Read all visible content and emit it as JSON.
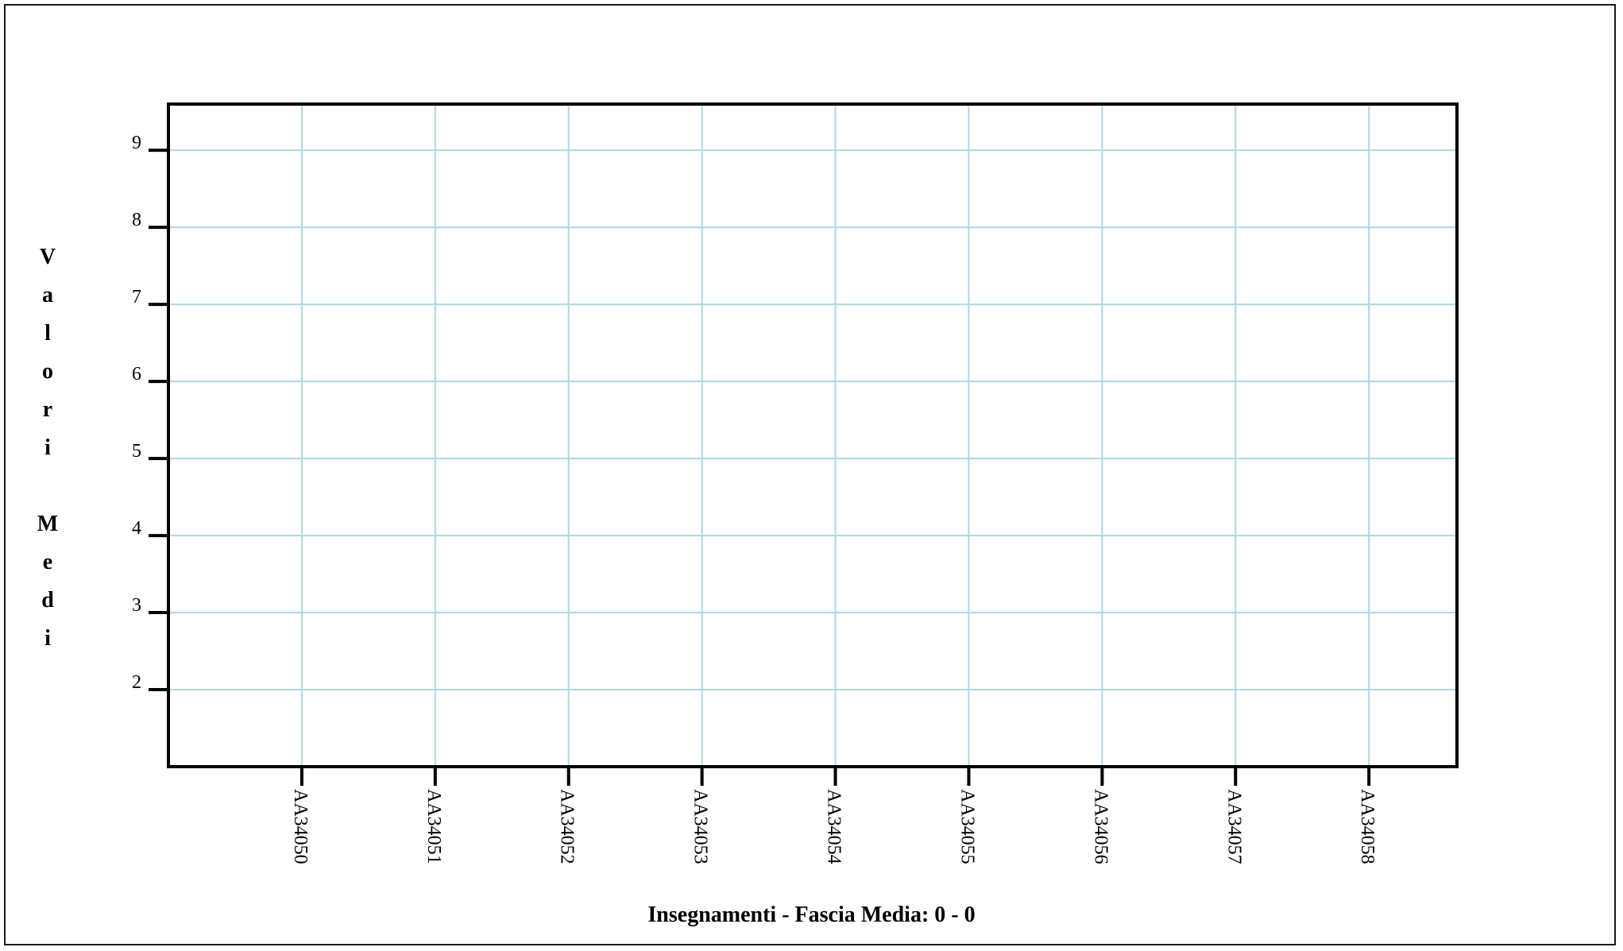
{
  "chart_data": {
    "type": "line",
    "title": "",
    "xlabel": "Insegnamenti - Fascia Media: 0 - 0",
    "ylabel": "Valori Medi",
    "categories": [
      "AA34050",
      "AA34051",
      "AA34052",
      "AA34053",
      "AA34054",
      "AA34055",
      "AA34056",
      "AA34057",
      "AA34058"
    ],
    "series": [],
    "ylim": [
      1,
      9.6
    ],
    "yticks": [
      2,
      3,
      4,
      5,
      6,
      7,
      8,
      9
    ],
    "grid": true,
    "colors": {
      "grid": "#add8e6",
      "axis": "#000000"
    }
  }
}
